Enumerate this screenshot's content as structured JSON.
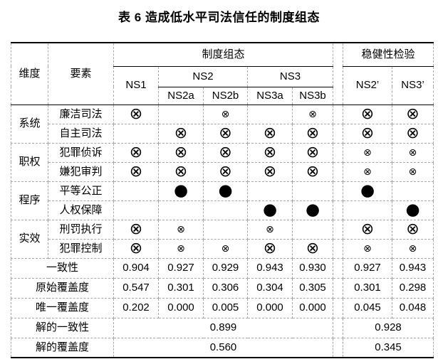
{
  "page": {
    "title": "表 6 造成低水平司法信任的制度组态"
  },
  "table": {
    "header": {
      "dimension": "维度",
      "element": "要素",
      "config_group": "制度组态",
      "robustness_group": "稳健性检验",
      "cols": {
        "ns1": "NS1",
        "ns2": "NS2",
        "ns3": "NS3",
        "ns2a": "NS2a",
        "ns2b": "NS2b",
        "ns3a": "NS3a",
        "ns3b": "NS3b",
        "ns2p": "NS2’",
        "ns3p": "NS3’"
      }
    },
    "symbols": {
      "core_absent": "⊗",
      "peripheral_absent": "⊗",
      "core_present": "●"
    },
    "dimension_groups": [
      {
        "dimension": "系统",
        "rows": [
          {
            "element": "廉洁司法",
            "cells": [
              "core_absent",
              "",
              "peripheral_absent",
              "",
              "peripheral_absent",
              "core_absent",
              "core_absent"
            ]
          },
          {
            "element": "自主司法",
            "cells": [
              "",
              "core_absent",
              "core_absent",
              "core_absent",
              "core_absent",
              "core_absent",
              "core_absent"
            ]
          }
        ]
      },
      {
        "dimension": "职权",
        "rows": [
          {
            "element": "犯罪侦诉",
            "cells": [
              "core_absent",
              "core_absent",
              "core_absent",
              "core_absent",
              "core_absent",
              "peripheral_absent",
              "peripheral_absent"
            ]
          },
          {
            "element": "嫌犯审判",
            "cells": [
              "core_absent",
              "core_absent",
              "core_absent",
              "core_absent",
              "core_absent",
              "peripheral_absent",
              "peripheral_absent"
            ]
          }
        ]
      },
      {
        "dimension": "程序",
        "rows": [
          {
            "element": "平等公正",
            "cells": [
              "",
              "core_present",
              "core_present",
              "",
              "",
              "core_present",
              ""
            ]
          },
          {
            "element": "人权保障",
            "cells": [
              "",
              "",
              "",
              "core_present",
              "core_present",
              "",
              "core_present"
            ]
          }
        ]
      },
      {
        "dimension": "实效",
        "rows": [
          {
            "element": "刑罚执行",
            "cells": [
              "core_absent",
              "peripheral_absent",
              "",
              "peripheral_absent",
              "",
              "core_absent",
              "core_absent"
            ]
          },
          {
            "element": "犯罪控制",
            "cells": [
              "core_absent",
              "peripheral_absent",
              "peripheral_absent",
              "core_absent",
              "core_absent",
              "peripheral_absent",
              "peripheral_absent"
            ]
          }
        ]
      }
    ],
    "stat_rows": [
      {
        "label": "一致性",
        "values": [
          "0.904",
          "0.927",
          "0.929",
          "0.943",
          "0.930",
          "0.927",
          "0.943"
        ]
      },
      {
        "label": "原始覆盖度",
        "values": [
          "0.547",
          "0.301",
          "0.306",
          "0.304",
          "0.305",
          "0.301",
          "0.298"
        ]
      },
      {
        "label": "唯一覆盖度",
        "values": [
          "0.202",
          "0.000",
          "0.005",
          "0.000",
          "0.000",
          "0.045",
          "0.048"
        ]
      }
    ],
    "solution_rows": [
      {
        "label": "解的一致性",
        "config_value": "0.899",
        "robustness_value": "0.928"
      },
      {
        "label": "解的覆盖度",
        "config_value": "0.560",
        "robustness_value": "0.345"
      }
    ]
  }
}
